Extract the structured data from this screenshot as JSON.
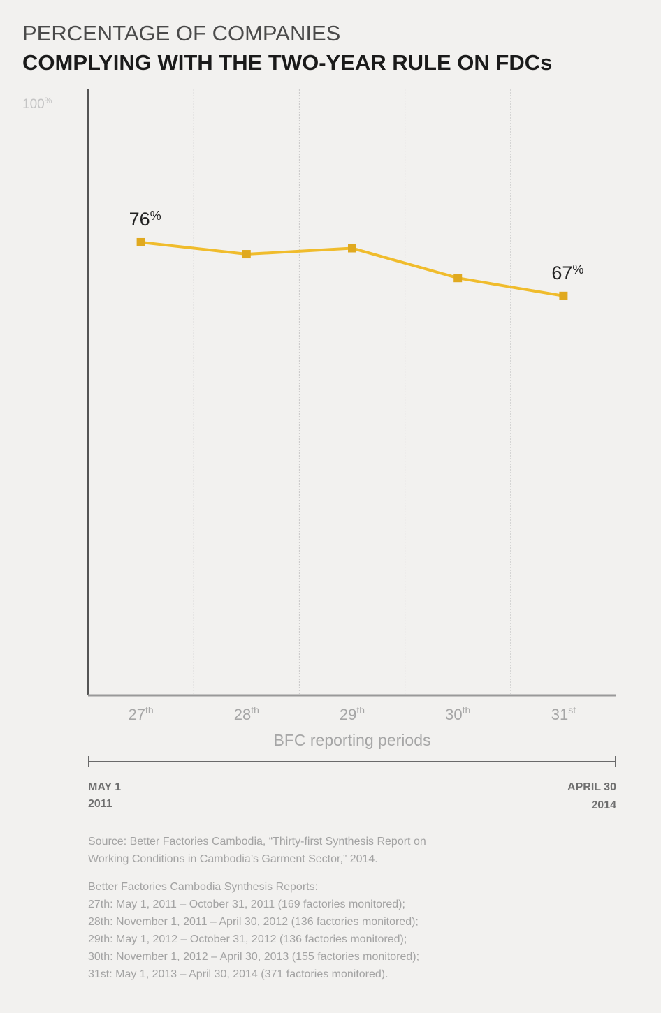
{
  "title": {
    "line1": "PERCENTAGE OF COMPANIES",
    "line2": "COMPLYING WITH THE TWO-YEAR RULE ON FDCs"
  },
  "chart_data": {
    "type": "line",
    "categories": [
      "27th",
      "28th",
      "29th",
      "30th",
      "31st"
    ],
    "category_labels": [
      {
        "num": "27",
        "sup": "th"
      },
      {
        "num": "28",
        "sup": "th"
      },
      {
        "num": "29",
        "sup": "th"
      },
      {
        "num": "30",
        "sup": "th"
      },
      {
        "num": "31",
        "sup": "st"
      }
    ],
    "values": [
      76,
      74,
      75,
      70,
      67
    ],
    "ylim": [
      0,
      100
    ],
    "ymax_label": {
      "num": "100",
      "unit": "%"
    },
    "xlabel": "BFC reporting periods",
    "ylabel": "",
    "data_labels": [
      {
        "index": 0,
        "num": "76",
        "unit": "%"
      },
      {
        "index": 4,
        "num": "67",
        "unit": "%"
      }
    ],
    "grid": "vertical",
    "line_color": "#f0bc2c",
    "marker": "square"
  },
  "timeline": {
    "start": {
      "line1": "MAY 1",
      "line2": "2011"
    },
    "end": {
      "line1": "APRIL 30",
      "line2": "2014"
    }
  },
  "source": {
    "line1": "Source: Better Factories Cambodia, “Thirty-first Synthesis Report on",
    "line2": "Working Conditions in Cambodia’s Garment Sector,” 2014."
  },
  "reports": {
    "heading": "Better Factories Cambodia Synthesis Reports:",
    "items": [
      "27th: May 1, 2011 – October 31, 2011 (169 factories monitored);",
      "28th: November 1, 2011 – April 30, 2012 (136 factories monitored);",
      "29th: May 1, 2012 – October 31, 2012 (136 factories monitored);",
      "30th: November 1, 2012 –  April 30, 2013 (155 factories monitored);",
      "31st: May 1, 2013 – April 30, 2014 (371 factories monitored)."
    ]
  }
}
